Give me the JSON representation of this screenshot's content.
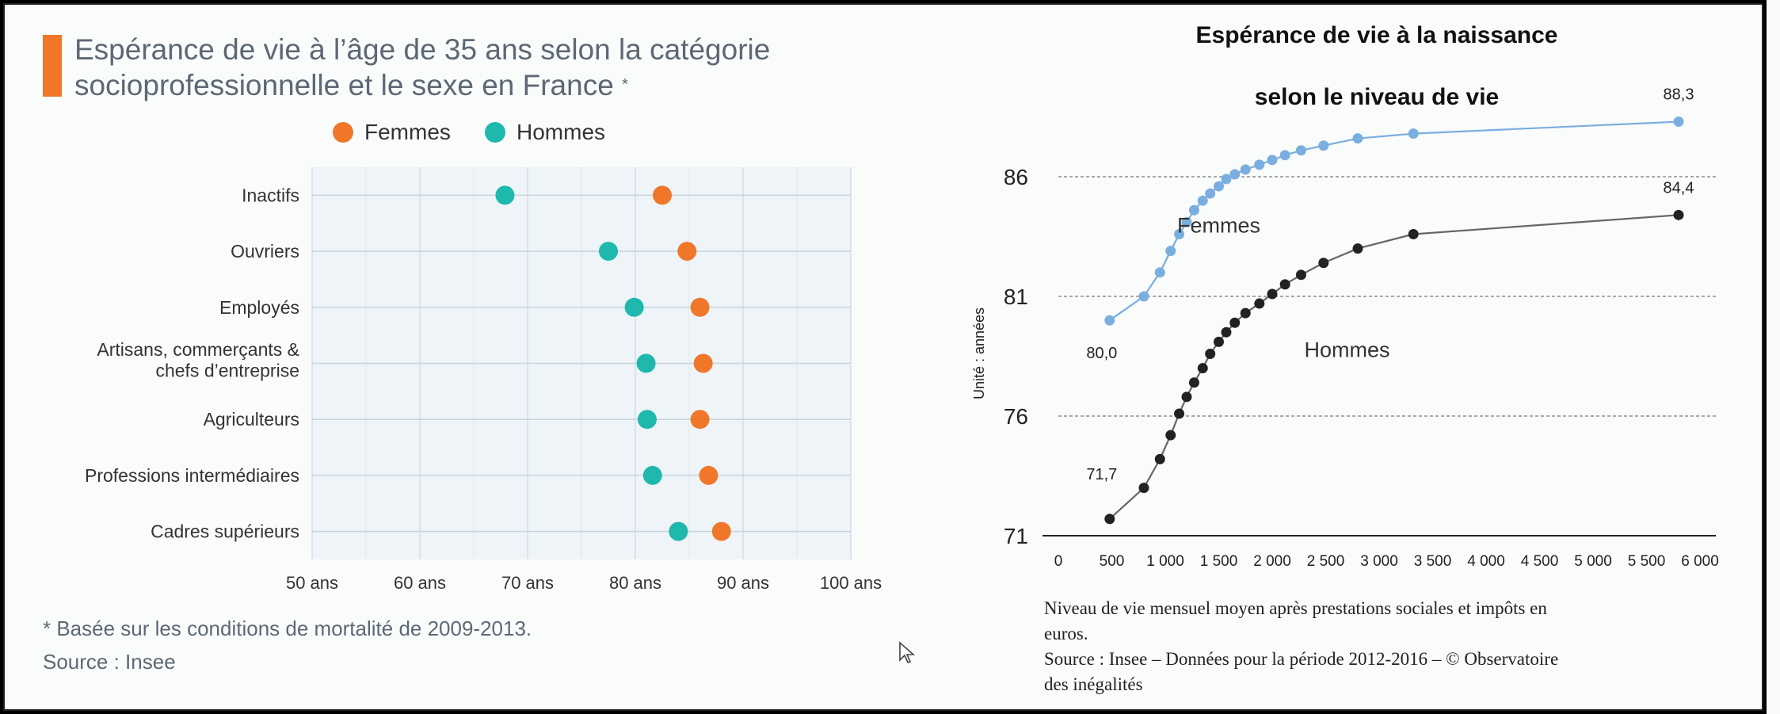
{
  "left": {
    "title_line1": "Espérance de vie à l’âge de 35 ans selon la catégorie",
    "title_line2": "socioprofessionnelle et le sexe en France",
    "title_mark": "*",
    "note": "* Basée sur les conditions de mortalité de 2009-2013.",
    "source": "Source : Insee"
  },
  "right": {
    "title_line1": "Espérance de vie à la naissance",
    "title_line2": "selon le niveau de vie",
    "note_line1": "Niveau de vie mensuel moyen après prestations sociales et impôts en",
    "note_line2": "euros.",
    "source_line1": "Source : Insee – Données pour la période 2012-2016 – © Observatoire",
    "source_line2": "des inégalités"
  },
  "chart_data": [
    {
      "type": "scatter",
      "title": "Espérance de vie à l’âge de 35 ans selon la catégorie socioprofessionnelle et le sexe en France *",
      "categories": [
        "Inactifs",
        "Ouvriers",
        "Employés",
        "Artisans, commerçants & chefs d’entreprise",
        "Agriculteurs",
        "Professions intermédiaires",
        "Cadres supérieurs"
      ],
      "series": [
        {
          "name": "Femmes",
          "color": "#f0772a",
          "values": [
            82.5,
            84.8,
            86.0,
            86.3,
            86.0,
            86.8,
            88.0
          ]
        },
        {
          "name": "Hommes",
          "color": "#1fb8ad",
          "values": [
            67.9,
            77.5,
            79.9,
            81.0,
            81.1,
            81.6,
            84.0
          ]
        }
      ],
      "x_ticks": [
        50,
        60,
        70,
        80,
        90,
        100
      ],
      "x_tick_labels": [
        "50 ans",
        "60 ans",
        "70 ans",
        "80 ans",
        "90 ans",
        "100 ans"
      ],
      "xlim": [
        50,
        100
      ],
      "legend": "top",
      "grid": true
    },
    {
      "type": "line",
      "title": "Espérance de vie à la naissance selon le niveau de vie",
      "ylabel": "Unité : années",
      "xlim": [
        0,
        6000
      ],
      "ylim": [
        71,
        88.3
      ],
      "x_ticks": [
        0,
        500,
        1000,
        1500,
        2000,
        2500,
        3000,
        3500,
        4000,
        4500,
        5000,
        5500,
        6000
      ],
      "x_tick_labels": [
        "0",
        "500",
        "1 000",
        "1 500",
        "2 000",
        "2 500",
        "3 000",
        "3 500",
        "4 000",
        "4 500",
        "5 000",
        "5 500",
        "6 000"
      ],
      "y_ticks": [
        71,
        76,
        81,
        86
      ],
      "y_tick_labels": [
        "71",
        "76",
        "81",
        "86"
      ],
      "grid": true,
      "series": [
        {
          "name": "Femmes",
          "color": "#7aaee0",
          "x": [
            480,
            800,
            950,
            1050,
            1130,
            1200,
            1270,
            1350,
            1420,
            1500,
            1570,
            1650,
            1750,
            1880,
            2000,
            2120,
            2270,
            2480,
            2800,
            3320,
            5800
          ],
          "y": [
            80.0,
            81.0,
            82.0,
            82.9,
            83.6,
            84.1,
            84.6,
            85.0,
            85.3,
            85.6,
            85.9,
            86.1,
            86.3,
            86.5,
            86.7,
            86.9,
            87.1,
            87.3,
            87.6,
            87.8,
            88.3
          ],
          "labels": [
            {
              "x": 480,
              "y": 80.0,
              "text": "80,0"
            },
            {
              "x": 5800,
              "y": 88.3,
              "text": "88,3"
            }
          ],
          "annotation": "Femmes"
        },
        {
          "name": "Hommes",
          "color": "#222222",
          "x": [
            480,
            800,
            950,
            1050,
            1130,
            1200,
            1270,
            1350,
            1420,
            1500,
            1570,
            1650,
            1750,
            1880,
            2000,
            2120,
            2270,
            2480,
            2800,
            3320,
            5800
          ],
          "y": [
            71.7,
            73.0,
            74.2,
            75.2,
            76.1,
            76.8,
            77.4,
            78.0,
            78.6,
            79.1,
            79.5,
            79.9,
            80.3,
            80.7,
            81.1,
            81.5,
            81.9,
            82.4,
            83.0,
            83.6,
            84.4
          ],
          "labels": [
            {
              "x": 480,
              "y": 71.7,
              "text": "71,7"
            },
            {
              "x": 5800,
              "y": 84.4,
              "text": "84,4"
            }
          ],
          "annotation": "Hommes"
        }
      ]
    }
  ]
}
